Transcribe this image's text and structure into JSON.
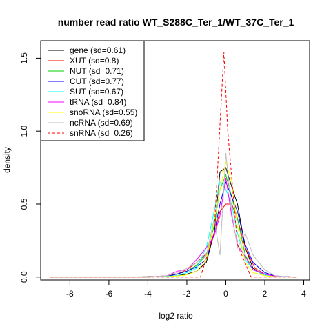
{
  "chart_data": {
    "type": "line",
    "title": "number read ratio WT_S288C_Ter_1/WT_37C_Ter_1",
    "xlabel": "log2 ratio",
    "ylabel": "density",
    "xlim": [
      -9.5,
      4.3
    ],
    "ylim": [
      -0.02,
      1.62
    ],
    "xticks": [
      -8,
      -6,
      -4,
      -2,
      0,
      2,
      4
    ],
    "yticks": [
      0.0,
      0.5,
      1.0,
      1.5
    ],
    "xtick_labels": [
      "-8",
      "-6",
      "-4",
      "-2",
      "0",
      "2",
      "4"
    ],
    "ytick_labels": [
      "0.0",
      "0.5",
      "1.0",
      "1.5"
    ],
    "grid": false,
    "legend_position": "top-left",
    "series": [
      {
        "name": "gene (sd=0.61)",
        "color": "#000000",
        "dash": "solid",
        "x": [
          -9,
          -5,
          -3,
          -2.5,
          -2,
          -1.5,
          -1,
          -0.6,
          -0.3,
          0,
          0.3,
          0.6,
          1,
          1.4,
          1.8,
          2.2,
          2.6,
          3.0,
          3.6
        ],
        "y": [
          0,
          0,
          0.005,
          0.01,
          0.02,
          0.04,
          0.1,
          0.3,
          0.72,
          0.75,
          0.62,
          0.5,
          0.2,
          0.06,
          0.025,
          0.01,
          0.005,
          0.003,
          0
        ]
      },
      {
        "name": "XUT (sd=0.8)",
        "color": "#ff0000",
        "dash": "solid",
        "x": [
          -9,
          -4,
          -3,
          -2.5,
          -2,
          -1.5,
          -1,
          -0.6,
          -0.3,
          0,
          0.3,
          0.6,
          1,
          1.5,
          2,
          2.5,
          3.0,
          3.6
        ],
        "y": [
          0,
          0,
          0.01,
          0.02,
          0.05,
          0.1,
          0.16,
          0.3,
          0.45,
          0.5,
          0.5,
          0.4,
          0.2,
          0.06,
          0.02,
          0.006,
          0.002,
          0
        ]
      },
      {
        "name": "NUT (sd=0.71)",
        "color": "#00cd00",
        "dash": "solid",
        "x": [
          -9,
          -4,
          -3,
          -2.5,
          -2,
          -1.5,
          -1,
          -0.6,
          -0.3,
          0,
          0.3,
          0.6,
          1,
          1.4,
          2,
          2.5,
          3.0,
          3.6
        ],
        "y": [
          0,
          0,
          0.005,
          0.02,
          0.04,
          0.08,
          0.15,
          0.35,
          0.6,
          0.7,
          0.55,
          0.4,
          0.15,
          0.05,
          0.015,
          0.005,
          0.002,
          0
        ]
      },
      {
        "name": "CUT (sd=0.77)",
        "color": "#0000ff",
        "dash": "solid",
        "x": [
          -9,
          -4,
          -3,
          -2.5,
          -2,
          -1.5,
          -1,
          -0.6,
          -0.3,
          0,
          0.3,
          0.6,
          1,
          1.4,
          2,
          2.5,
          3.0,
          3.6
        ],
        "y": [
          0,
          0,
          0.005,
          0.02,
          0.04,
          0.07,
          0.12,
          0.3,
          0.5,
          0.65,
          0.55,
          0.45,
          0.22,
          0.1,
          0.03,
          0.01,
          0.003,
          0
        ]
      },
      {
        "name": "SUT (sd=0.67)",
        "color": "#00ffff",
        "dash": "solid",
        "x": [
          -9,
          -4,
          -3,
          -2.5,
          -2,
          -1.5,
          -1,
          -0.6,
          -0.3,
          0,
          0.3,
          0.6,
          1,
          1.4,
          2,
          2.5,
          3.0,
          3.6
        ],
        "y": [
          0,
          0,
          0.005,
          0.01,
          0.03,
          0.06,
          0.2,
          0.45,
          0.65,
          0.6,
          0.5,
          0.3,
          0.12,
          0.05,
          0.015,
          0.005,
          0.002,
          0
        ]
      },
      {
        "name": "tRNA (sd=0.84)",
        "color": "#ff00ff",
        "dash": "solid",
        "x": [
          -9,
          -4,
          -3,
          -2.5,
          -2,
          -1.5,
          -1,
          -0.6,
          -0.3,
          0,
          0.3,
          0.6,
          1,
          1.4,
          2,
          2.5,
          3.0,
          3.6
        ],
        "y": [
          0,
          0,
          0.01,
          0.04,
          0.05,
          0.12,
          0.2,
          0.28,
          0.42,
          0.68,
          0.42,
          0.22,
          0.14,
          0.05,
          0.02,
          0.006,
          0.002,
          0
        ]
      },
      {
        "name": "snoRNA (sd=0.55)",
        "color": "#ffff00",
        "dash": "solid",
        "x": [
          -9,
          -4,
          -3,
          -2.5,
          -2,
          -1.5,
          -1,
          -0.6,
          -0.3,
          0,
          0.3,
          0.6,
          1,
          1.4,
          2,
          2.5,
          3.0,
          3.6
        ],
        "y": [
          0,
          0,
          0.003,
          0.008,
          0.015,
          0.04,
          0.12,
          0.38,
          0.6,
          0.79,
          0.65,
          0.35,
          0.1,
          0.03,
          0.01,
          0.003,
          0.001,
          0
        ]
      },
      {
        "name": "ncRNA (sd=0.69)",
        "color": "#bebebe",
        "dash": "solid",
        "x": [
          -9,
          -4,
          -3,
          -2.5,
          -2,
          -1.5,
          -1,
          -0.6,
          -0.3,
          0,
          0.3,
          0.6,
          1,
          1.4,
          2,
          2.5,
          3.0,
          3.6
        ],
        "y": [
          0,
          0,
          0.01,
          0.03,
          0.06,
          0.1,
          0.15,
          0.4,
          0.15,
          0.85,
          0.45,
          0.2,
          0.3,
          0.15,
          0.05,
          0.01,
          0.003,
          0
        ]
      },
      {
        "name": "snRNA (sd=0.26)",
        "color": "#ff0000",
        "dash": "dashed",
        "x": [
          -9,
          -1.3,
          -0.6,
          -0.1,
          0.1,
          0.6,
          1.3,
          3.6
        ],
        "y": [
          0,
          0,
          0.3,
          1.54,
          1.0,
          0.22,
          0,
          0
        ]
      }
    ]
  }
}
